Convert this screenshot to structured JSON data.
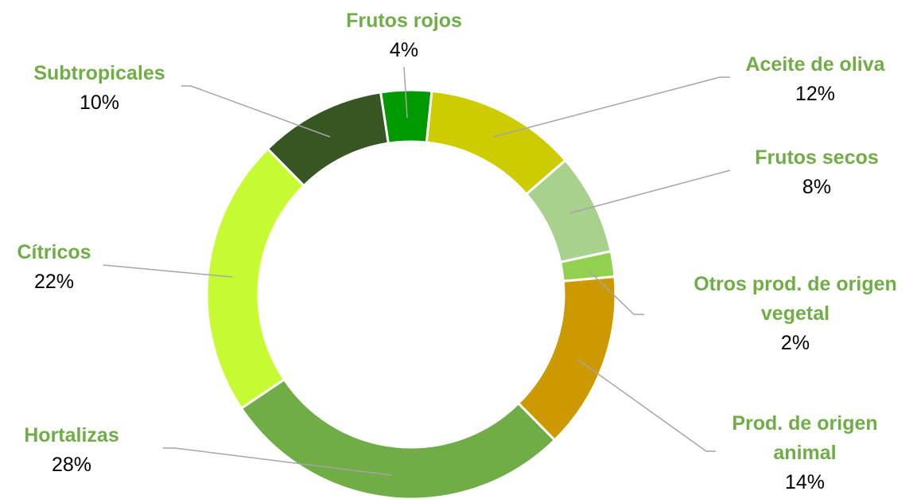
{
  "chart_data": {
    "type": "donut",
    "categories": [
      "Frutos rojos",
      "Aceite de oliva",
      "Frutos secos",
      "Otros prod. de origen vegetal",
      "Prod. de origen animal",
      "Hortalizas",
      "Cítricos",
      "Subtropicales"
    ],
    "values": [
      4,
      12,
      8,
      2,
      14,
      28,
      22,
      10
    ],
    "value_labels": [
      "4%",
      "12%",
      "8%",
      "2%",
      "14%",
      "28%",
      "22%",
      "10%"
    ],
    "colors": [
      "#009900",
      "#cccc00",
      "#a9d18e",
      "#92d050",
      "#cc9900",
      "#70ad47",
      "#c6fb33",
      "#375623"
    ]
  }
}
